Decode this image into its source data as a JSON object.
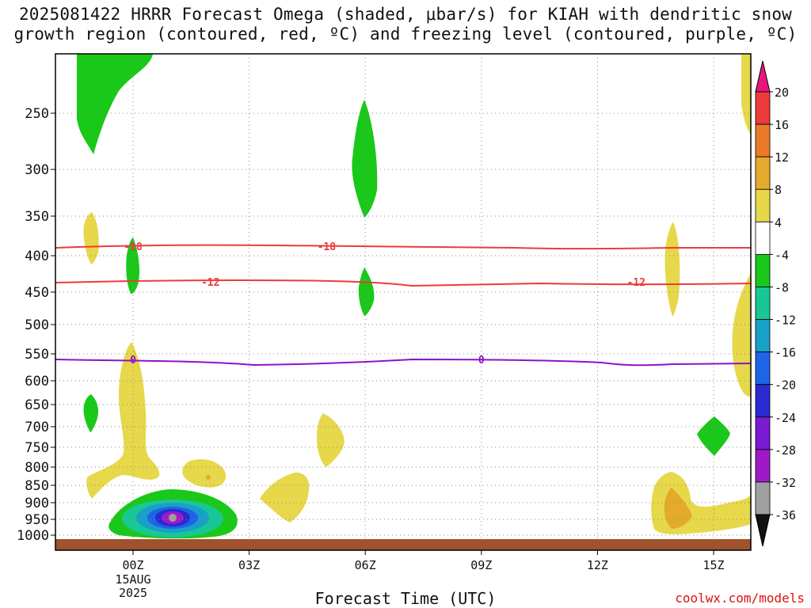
{
  "title": {
    "line1": "2025081422 HRRR Forecast Omega (shaded, μbar/s) for KIAH with dendritic snow",
    "line2": "growth region (contoured, red, ºC) and freezing level (contoured, purple, ºC)"
  },
  "credit": "coolwx.com/models",
  "chart_data": {
    "type": "heatmap",
    "xlabel": "Forecast Time (UTC)",
    "ylabel": "",
    "x_ticks": [
      {
        "hour": 0,
        "label": "00Z",
        "sub": [
          "15AUG",
          "2025"
        ]
      },
      {
        "hour": 3,
        "label": "03Z"
      },
      {
        "hour": 6,
        "label": "06Z"
      },
      {
        "hour": 9,
        "label": "09Z"
      },
      {
        "hour": 12,
        "label": "12Z"
      },
      {
        "hour": 15,
        "label": "15Z"
      }
    ],
    "xlim": [
      -2,
      16
    ],
    "y_ticks": [
      250,
      300,
      350,
      400,
      450,
      500,
      550,
      600,
      650,
      700,
      750,
      800,
      850,
      900,
      950,
      1000
    ],
    "ylim_hPa": [
      200,
      1000
    ],
    "grid": true,
    "colorbar": {
      "labels": [
        "20",
        "16",
        "12",
        "8",
        "4",
        "-4",
        "-8",
        "-12",
        "-16",
        "-20",
        "-24",
        "-28",
        "-32",
        "-36"
      ],
      "colors": [
        "#e8177e",
        "#ee3a3a",
        "#ea7a2a",
        "#e3aa2c",
        "#e6d84a",
        "#ffffff",
        "#19c819",
        "#17c896",
        "#19a0c8",
        "#1e64e6",
        "#2a2ad2",
        "#7a1ad2",
        "#a019c8",
        "#a0a0a0",
        "#111111"
      ]
    },
    "contours": [
      {
        "name": "-18",
        "color": "#ee3a3a",
        "label_hours": [
          0,
          5
        ]
      },
      {
        "name": "-12",
        "color": "#ee3a3a",
        "label_hours": [
          2,
          13
        ]
      },
      {
        "name": "0",
        "color": "#9010c8",
        "label_hours": [
          0,
          9
        ]
      }
    ]
  }
}
